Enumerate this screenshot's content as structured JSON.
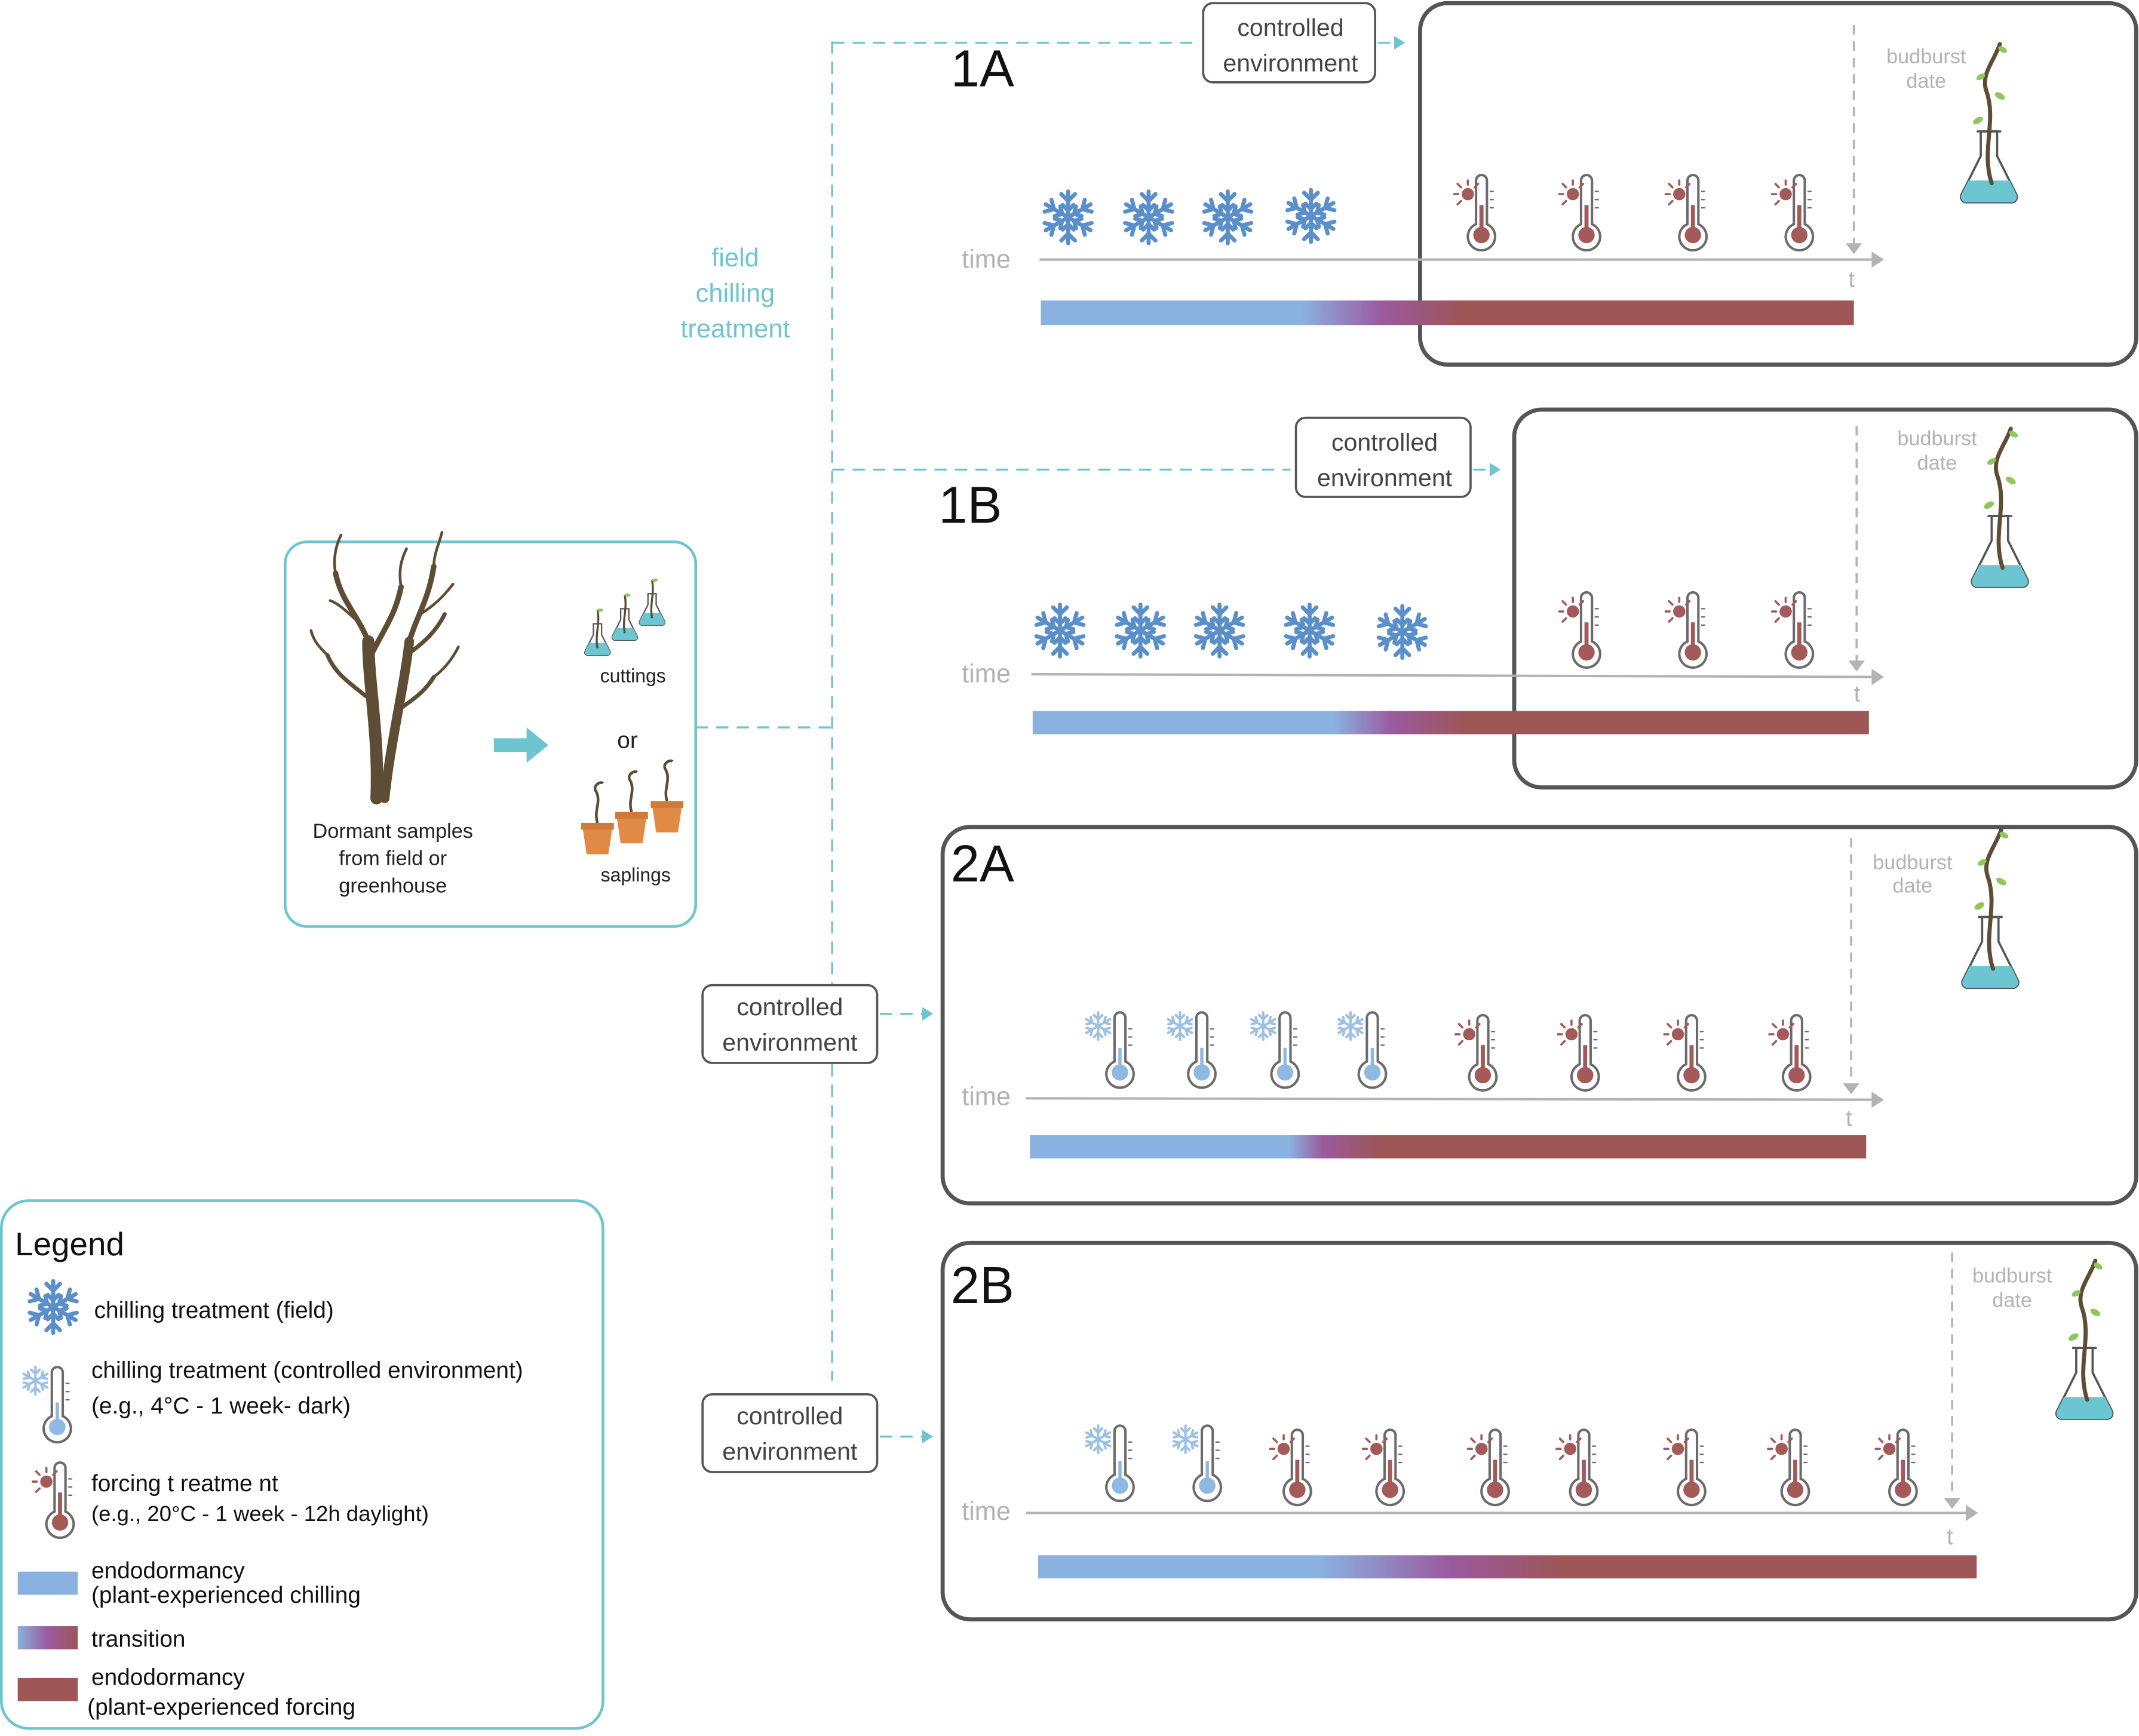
{
  "colors": {
    "teal": "#6cc5cf",
    "frame": "#555555",
    "snow": "#5b8fc9",
    "snow_light": "#9cc0e6",
    "warm": "#a55a5a",
    "cold_bulb": "#8fb8e3",
    "axis": "#b3b3b3",
    "bar_cold": "#8ab2e0",
    "bar_mid": "#9a5a9f",
    "bar_warm": "#9e5656",
    "water": "#6cc6d1",
    "tree": "#5e4d34",
    "pot": "#e08a45",
    "leaf": "#8cc85a"
  },
  "icons": {
    "field_chill": "snowflake-icon",
    "controlled_chill": "snowflake-thermometer-icon",
    "forcing": "sun-thermometer-icon",
    "budburst": "plant-flask-icon",
    "tree": "tree-icon",
    "cuttings": "flask-cutting-icon",
    "saplings": "potted-sapling-icon"
  },
  "samples": {
    "title_lines": [
      "Dormant samples",
      "from field or",
      "greenhouse"
    ],
    "cuttings": "cuttings",
    "or": "or",
    "saplings": "saplings"
  },
  "field_label": [
    "field",
    "chilling",
    "treatment"
  ],
  "controlled_label": [
    "controlled",
    "environment"
  ],
  "axis": {
    "time": "time",
    "t": "t"
  },
  "budburst": [
    "budburst",
    "date"
  ],
  "panels": [
    {
      "id": "1A",
      "field_snowflakes": 4,
      "ce_chill": 0,
      "forcing": 4
    },
    {
      "id": "1B",
      "field_snowflakes": 5,
      "ce_chill": 0,
      "forcing": 3
    },
    {
      "id": "2A",
      "field_snowflakes": 0,
      "ce_chill": 4,
      "forcing": 4
    },
    {
      "id": "2B",
      "field_snowflakes": 0,
      "ce_chill": 2,
      "forcing": 7
    }
  ],
  "legend": {
    "title": "Legend",
    "field_chill": "chilling treatment (field)",
    "ce_chill_1": "chilling treatment (controlled environment)",
    "ce_chill_2": "(e.g., 4°C - 1 week- dark)",
    "forcing_1": "forcing t reatme nt",
    "forcing_2": "(e.g., 20°C - 1 week - 12h daylight)",
    "endo_chill_1": "endodormancy",
    "endo_chill_2": "(plant-experienced chilling",
    "transition": "transition",
    "endo_force_1": "endodormancy",
    "endo_force_2": "(plant-experienced forcing"
  }
}
